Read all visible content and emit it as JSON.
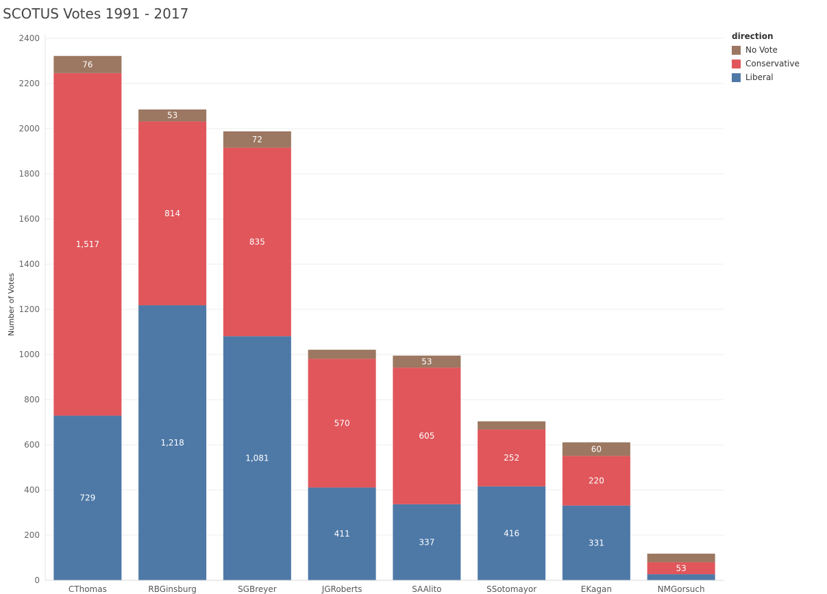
{
  "chart_data": {
    "type": "bar",
    "stacked": true,
    "title": "SCOTUS Votes 1991 - 2017",
    "ylabel": "Number of Votes",
    "xlabel": "",
    "ylim": [
      0,
      2400
    ],
    "yticks": [
      0,
      200,
      400,
      600,
      800,
      1000,
      1200,
      1400,
      1600,
      1800,
      2000,
      2200,
      2400
    ],
    "grid": true,
    "legend_title": "direction",
    "legend_position": "top-right",
    "legend": [
      {
        "name": "No Vote",
        "color": "#9c7761"
      },
      {
        "name": "Conservative",
        "color": "#e0565b"
      },
      {
        "name": "Liberal",
        "color": "#4e79a7"
      }
    ],
    "categories": [
      "CThomas",
      "RBGinsburg",
      "SGBreyer",
      "JGRoberts",
      "SAAlito",
      "SSotomayor",
      "EKagan",
      "NMGorsuch"
    ],
    "series": [
      {
        "name": "Liberal",
        "color": "#4e79a7",
        "values": [
          729,
          1218,
          1081,
          411,
          337,
          416,
          331,
          27
        ],
        "labels": [
          "729",
          "1,218",
          "1,081",
          "411",
          "337",
          "416",
          "331",
          ""
        ]
      },
      {
        "name": "Conservative",
        "color": "#e0565b",
        "values": [
          1517,
          814,
          835,
          570,
          605,
          252,
          220,
          53
        ],
        "labels": [
          "1,517",
          "814",
          "835",
          "570",
          "605",
          "252",
          "220",
          "53"
        ]
      },
      {
        "name": "No Vote",
        "color": "#9c7761",
        "values": [
          76,
          53,
          72,
          40,
          53,
          36,
          60,
          38
        ],
        "labels": [
          "76",
          "53",
          "72",
          "",
          "53",
          "",
          "60",
          ""
        ]
      }
    ]
  }
}
